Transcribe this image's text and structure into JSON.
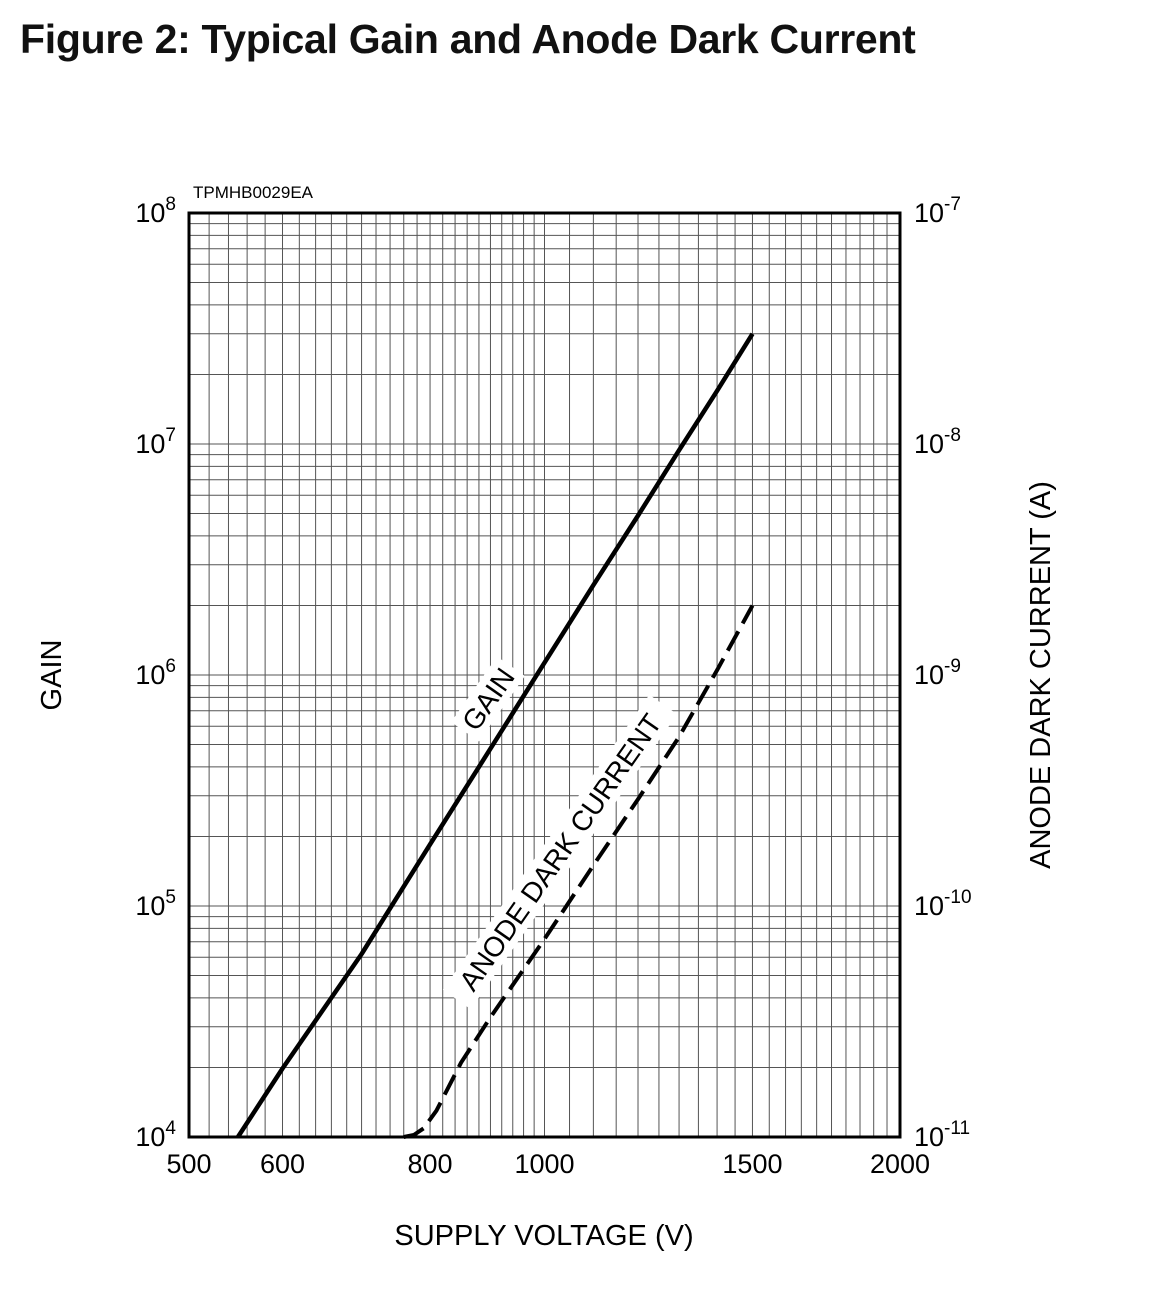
{
  "title": "Figure 2: Typical Gain and Anode Dark Current",
  "chart_data": {
    "type": "line",
    "code": "TPMHB0029EA",
    "xlabel": "SUPPLY VOLTAGE (V)",
    "ylabel": "GAIN",
    "y2label": "ANODE DARK CURRENT (A)",
    "xscale": "log",
    "yscale": "log",
    "xlim": [
      500,
      2000
    ],
    "ylim": [
      10000,
      100000000
    ],
    "y2lim": [
      1e-11,
      1e-07
    ],
    "grid": true,
    "x_ticks": [
      {
        "value": 500,
        "label": "500"
      },
      {
        "value": 600,
        "label": "600"
      },
      {
        "value": 800,
        "label": "800"
      },
      {
        "value": 1000,
        "label": "1000"
      },
      {
        "value": 1500,
        "label": "1500"
      },
      {
        "value": 2000,
        "label": "2000"
      }
    ],
    "y_ticks": [
      {
        "value": 10000,
        "base": "10",
        "exp": "4"
      },
      {
        "value": 100000,
        "base": "10",
        "exp": "5"
      },
      {
        "value": 1000000,
        "base": "10",
        "exp": "6"
      },
      {
        "value": 10000000,
        "base": "10",
        "exp": "7"
      },
      {
        "value": 100000000,
        "base": "10",
        "exp": "8"
      }
    ],
    "y2_ticks": [
      {
        "value": 1e-11,
        "base": "10",
        "exp": "-11"
      },
      {
        "value": 1e-10,
        "base": "10",
        "exp": "-10"
      },
      {
        "value": 1e-09,
        "base": "10",
        "exp": "-9"
      },
      {
        "value": 1e-08,
        "base": "10",
        "exp": "-8"
      },
      {
        "value": 1e-07,
        "base": "10",
        "exp": "-7"
      }
    ],
    "series": [
      {
        "name": "GAIN",
        "axis": "left",
        "style": "solid",
        "x": [
          550,
          600,
          700,
          800,
          900,
          1000,
          1100,
          1200,
          1300,
          1400,
          1500
        ],
        "y": [
          10000,
          19800,
          62000,
          185000,
          480000,
          1130000,
          2450000,
          4900000,
          9400000,
          17000000,
          30000000
        ]
      },
      {
        "name": "ANODE DARK CURRENT",
        "axis": "right",
        "style": "dashed",
        "x": [
          760,
          775,
          790,
          810,
          850,
          900,
          1000,
          1100,
          1200,
          1300,
          1400,
          1500
        ],
        "y": [
          1e-11,
          1.02e-11,
          1.09e-11,
          1.3e-11,
          2.1e-11,
          3.3e-11,
          7.2e-11,
          1.5e-10,
          2.9e-10,
          5.4e-10,
          1.05e-09,
          2e-09
        ]
      }
    ]
  }
}
